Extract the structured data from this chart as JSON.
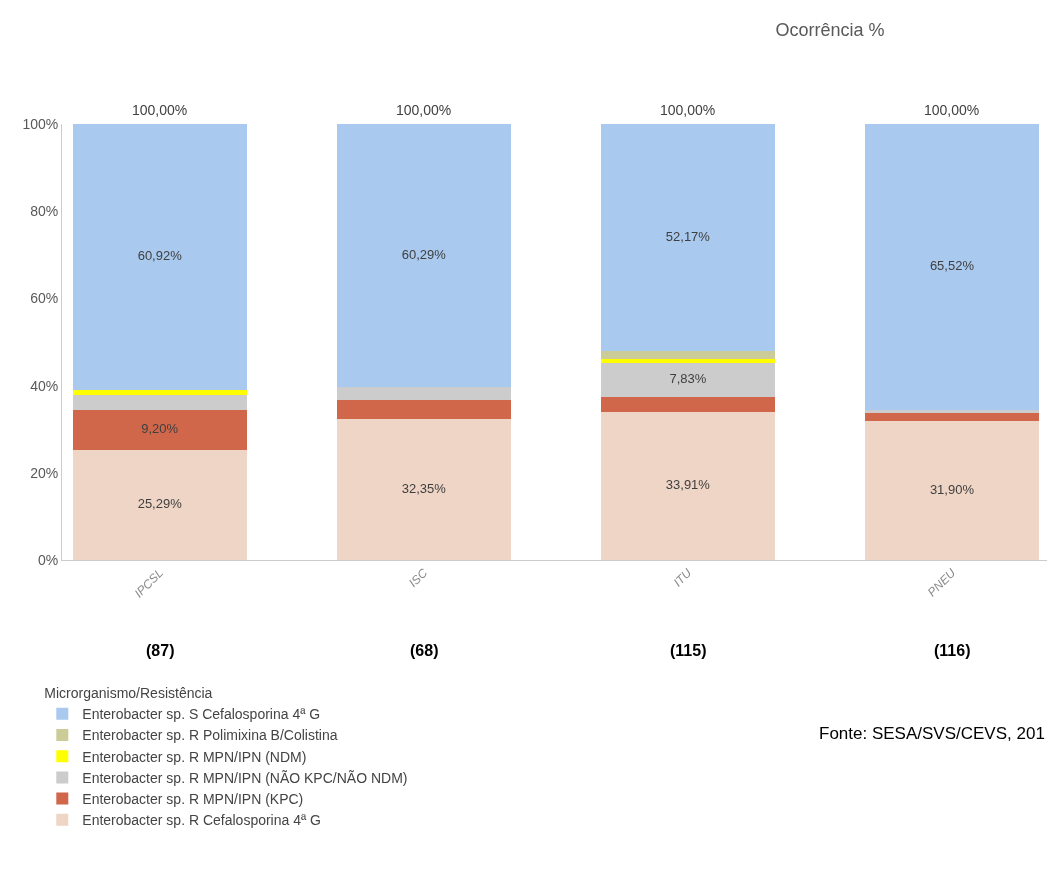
{
  "chart_data": {
    "type": "bar",
    "stacked": true,
    "title": "Ocorrência %",
    "legend_title": "Microrganismo/Resistência",
    "legend": "bottom left",
    "grid": false,
    "categories": [
      "IPCSL",
      "ISC",
      "ITU",
      "PNEU"
    ],
    "ylim": [
      0,
      100
    ],
    "yticks": [
      {
        "value": 0,
        "label": "0%"
      },
      {
        "value": 20,
        "label": "20%"
      },
      {
        "value": 40,
        "label": "40%"
      },
      {
        "value": 60,
        "label": "60%"
      },
      {
        "value": 80,
        "label": "80%"
      },
      {
        "value": 100,
        "label": "100%"
      }
    ],
    "totals": [
      "100,00%",
      "100,00%",
      "100,00%",
      "100,00%"
    ],
    "annotations": [
      "(87)",
      "(68)",
      "(115)",
      "(116)",
      "Fonte: SESA/SVS/CEVS, 201"
    ],
    "series": [
      {
        "name": "Enterobacter sp. R Cefalosporina 4ª G",
        "color": "#efd5c5",
        "values": [
          25.29,
          32.35,
          33.91,
          31.9
        ],
        "value_labels": [
          "25,29%",
          "32,35%",
          "33,91%",
          "31,90%"
        ]
      },
      {
        "name": "Enterobacter sp. R MPN/IPN (KPC)",
        "color": "#d0674a",
        "values": [
          9.2,
          4.42,
          3.48,
          1.72
        ],
        "value_labels": [
          "9,20%",
          null,
          null,
          null
        ]
      },
      {
        "name": "Enterobacter sp. R MPN/IPN (NÃO KPC/NÃO NDM)",
        "color": "#cccccc",
        "values": [
          3.44,
          2.94,
          7.83,
          0.86
        ],
        "value_labels": [
          null,
          null,
          "7,83%",
          null
        ]
      },
      {
        "name": "Enterobacter sp. R MPN/IPN (NDM)",
        "color": "#ffff00",
        "values": [
          1.15,
          0,
          0.87,
          0
        ]
      },
      {
        "name": "Enterobacter sp. R Polimixina B/Colistina",
        "color": "#cccc99",
        "values": [
          0,
          0,
          1.74,
          0
        ]
      },
      {
        "name": "Enterobacter sp. S Cefalosporina 4ª G",
        "color": "#a9c9ee",
        "values": [
          60.92,
          60.29,
          52.17,
          65.52
        ],
        "value_labels": [
          "60,92%",
          "60,29%",
          "52,17%",
          "65,52%"
        ]
      }
    ]
  }
}
